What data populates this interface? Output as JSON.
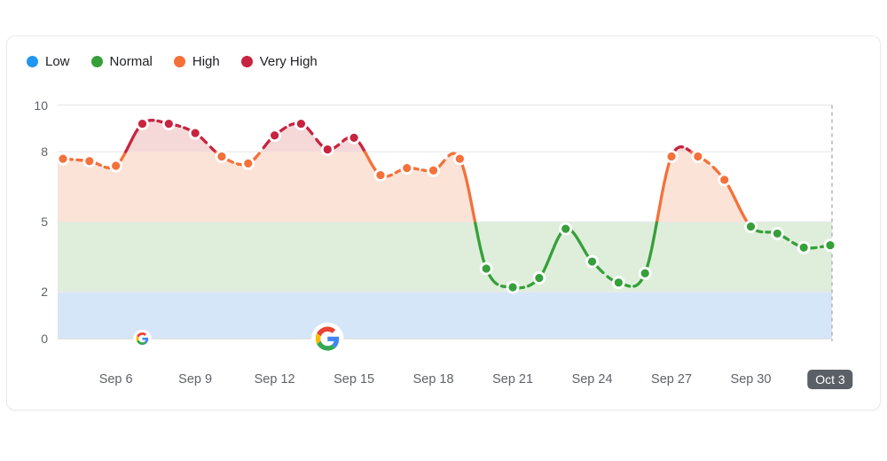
{
  "legend": {
    "items": [
      {
        "label": "Low",
        "color": "#2196F3"
      },
      {
        "label": "Normal",
        "color": "#35A03A"
      },
      {
        "label": "High",
        "color": "#F4713A"
      },
      {
        "label": "Very High",
        "color": "#C8233F"
      }
    ]
  },
  "chart_data": {
    "type": "line",
    "x": [
      "Sep 4",
      "Sep 5",
      "Sep 6",
      "Sep 7",
      "Sep 8",
      "Sep 9",
      "Sep 10",
      "Sep 11",
      "Sep 12",
      "Sep 13",
      "Sep 14",
      "Sep 15",
      "Sep 16",
      "Sep 17",
      "Sep 18",
      "Sep 19",
      "Sep 20",
      "Sep 21",
      "Sep 22",
      "Sep 23",
      "Sep 24",
      "Sep 25",
      "Sep 26",
      "Sep 27",
      "Sep 28",
      "Sep 29",
      "Sep 30",
      "Oct 1",
      "Oct 2",
      "Oct 3"
    ],
    "values": [
      7.7,
      7.6,
      7.4,
      9.2,
      9.2,
      8.8,
      7.8,
      7.5,
      8.7,
      9.2,
      8.1,
      8.6,
      7.0,
      7.3,
      7.2,
      7.7,
      3.0,
      2.2,
      2.6,
      4.7,
      3.3,
      2.4,
      2.8,
      7.8,
      7.8,
      6.8,
      4.8,
      4.5,
      3.9,
      4.0
    ],
    "levels": [
      "high",
      "high",
      "high",
      "very_high",
      "very_high",
      "very_high",
      "high",
      "high",
      "very_high",
      "very_high",
      "very_high",
      "very_high",
      "high",
      "high",
      "high",
      "high",
      "normal",
      "normal",
      "normal",
      "normal",
      "normal",
      "normal",
      "normal",
      "high",
      "high",
      "high",
      "normal",
      "normal",
      "normal",
      "normal"
    ],
    "xticks": [
      "Sep 6",
      "Sep 9",
      "Sep 12",
      "Sep 15",
      "Sep 18",
      "Sep 21",
      "Sep 24",
      "Sep 27",
      "Sep 30",
      "Oct 3"
    ],
    "yticks": [
      0,
      2,
      5,
      8,
      10
    ],
    "ylim": [
      0,
      10
    ],
    "grid": true,
    "legend_position": "top-left",
    "bands": [
      {
        "label": "low_zone",
        "range": [
          0,
          2
        ],
        "fill": "#d6e6f9"
      },
      {
        "label": "normal_zone",
        "range": [
          2,
          5
        ],
        "fill": "#dfeedb"
      },
      {
        "label": "high_zone",
        "range": [
          5,
          8
        ],
        "fill": "#fbe3d7"
      },
      {
        "label": "very_high_zone",
        "range": [
          8,
          10
        ],
        "fill": "#f5d9d9"
      }
    ],
    "line_colors": {
      "low": "#2196F3",
      "normal": "#35A03A",
      "high": "#F4713A",
      "very_high": "#C8233F"
    },
    "today_label": "Oct 3",
    "google_markers": [
      {
        "date": "Sep 7",
        "size": "small"
      },
      {
        "date": "Sep 14",
        "size": "large"
      }
    ]
  },
  "colors": {
    "gridline": "#e7e8ea",
    "baseline": "#d9dbde",
    "today_line": "#a8adb3",
    "tick_text": "#5f6368",
    "badge_bg": "#5a6066",
    "badge_text": "#ffffff",
    "card_border": "#e9eaee",
    "dot_halo": "#ffffff"
  }
}
